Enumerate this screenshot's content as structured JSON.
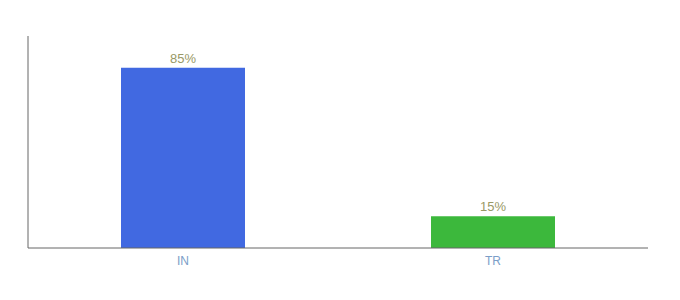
{
  "chart_data": {
    "type": "bar",
    "categories": [
      "IN",
      "TR"
    ],
    "values": [
      85,
      15
    ],
    "value_labels": [
      "85%",
      "15%"
    ],
    "data_labels": true,
    "colors": [
      "#4169E1",
      "#3CB83C"
    ],
    "ylim": [
      0,
      100
    ],
    "tick_labels": "x",
    "grid": false
  }
}
